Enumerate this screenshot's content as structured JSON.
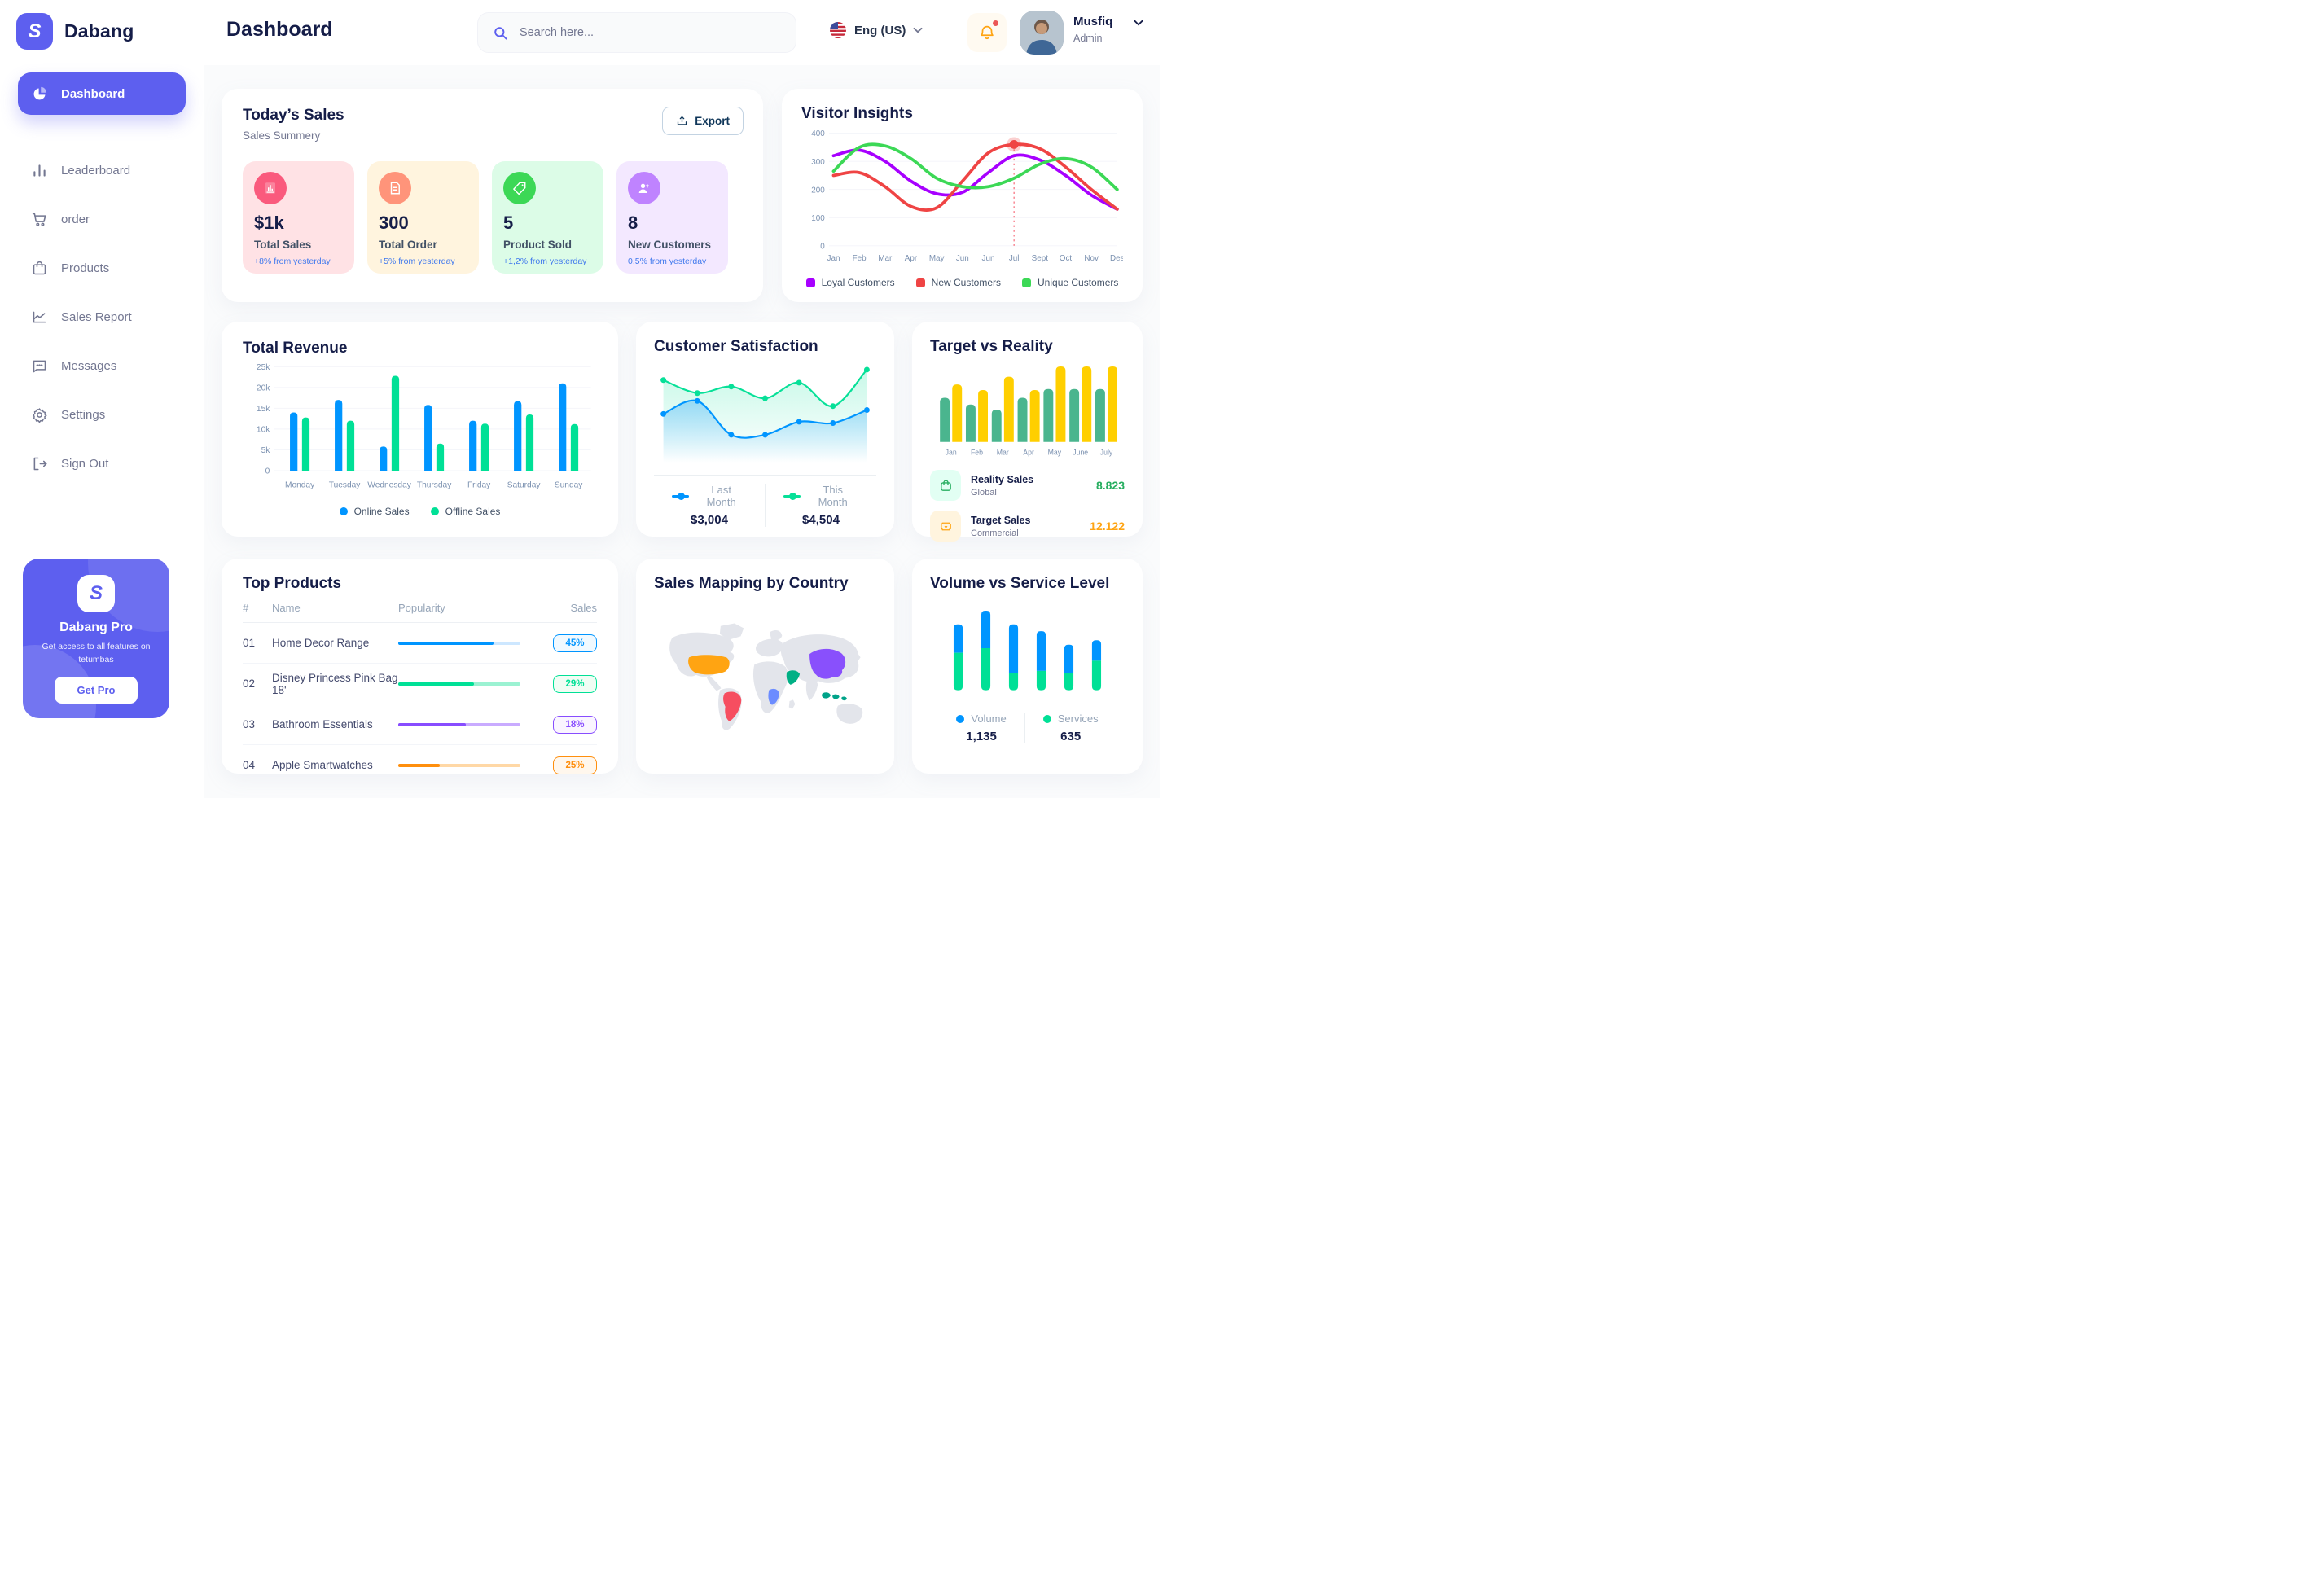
{
  "app": {
    "brand": "Dabang",
    "page_title": "Dashboard"
  },
  "sidebar": {
    "items": [
      {
        "label": "Dashboard",
        "icon": "pie-chart-icon",
        "active": true
      },
      {
        "label": "Leaderboard",
        "icon": "bar-chart-icon",
        "active": false
      },
      {
        "label": "order",
        "icon": "cart-icon",
        "active": false
      },
      {
        "label": "Products",
        "icon": "bag-icon",
        "active": false
      },
      {
        "label": "Sales Report",
        "icon": "line-chart-icon",
        "active": false
      },
      {
        "label": "Messages",
        "icon": "chat-icon",
        "active": false
      },
      {
        "label": "Settings",
        "icon": "gear-icon",
        "active": false
      },
      {
        "label": "Sign Out",
        "icon": "sign-out-icon",
        "active": false
      }
    ],
    "pro": {
      "title": "Dabang Pro",
      "subtitle": "Get access to all features on tetumbas",
      "button": "Get Pro"
    }
  },
  "header": {
    "search_placeholder": "Search here...",
    "language": "Eng (US)",
    "user": {
      "name": "Musfiq",
      "role": "Admin"
    }
  },
  "main": {
    "todays_sales": {
      "title": "Today’s Sales",
      "subtitle": "Sales Summery",
      "export_label": "Export",
      "cards": [
        {
          "value": "$1k",
          "label": "Total Sales",
          "delta": "+8% from yesterday",
          "bg": "#FFE2E5",
          "icon_bg": "#FA5A7D",
          "icon": "chart-doc-icon"
        },
        {
          "value": "300",
          "label": "Total Order",
          "delta": "+5% from yesterday",
          "bg": "#FFF4DE",
          "icon_bg": "#FF947A",
          "icon": "file-icon"
        },
        {
          "value": "5",
          "label": "Product Sold",
          "delta": "+1,2% from yesterday",
          "bg": "#DCFCE7",
          "icon_bg": "#3CD856",
          "icon": "tag-icon"
        },
        {
          "value": "8",
          "label": "New Customers",
          "delta": "0,5% from yesterday",
          "bg": "#F3E8FF",
          "icon_bg": "#BF83FF",
          "icon": "user-plus-icon"
        }
      ]
    },
    "visitor": {
      "title": "Visitor Insights"
    },
    "revenue": {
      "title": "Total Revenue"
    },
    "satisfaction": {
      "title": "Customer Satisfaction",
      "legend": [
        {
          "label": "Last Month",
          "value": "$3,004",
          "color": "#0095FF"
        },
        {
          "label": "This Month",
          "value": "$4,504",
          "color": "#07E098"
        }
      ]
    },
    "target": {
      "title": "Target vs Reality",
      "legend": [
        {
          "label": "Reality Sales",
          "sub": "Global",
          "value": "8.823",
          "value_color": "#27AE60",
          "icon_bg": "#E2FFF3",
          "icon": "bag-small-icon"
        },
        {
          "label": "Target Sales",
          "sub": "Commercial",
          "value": "12.122",
          "value_color": "#FFA412",
          "icon_bg": "#FFF4DE",
          "icon": "ticket-icon"
        }
      ]
    },
    "top_products": {
      "title": "Top Products",
      "columns": [
        "#",
        "Name",
        "Popularity",
        "Sales"
      ],
      "rows": [
        {
          "num": "01",
          "name": "Home Decor Range",
          "popularity": 78,
          "sales": "45%",
          "color": "#0095FF",
          "track": "#CDE7FF",
          "badge_bg": "#F0F9FF"
        },
        {
          "num": "02",
          "name": "Disney Princess Pink Bag 18'",
          "popularity": 62,
          "sales": "29%",
          "color": "#00E096",
          "track": "#9BF2D2",
          "badge_bg": "#F0FDF4"
        },
        {
          "num": "03",
          "name": "Bathroom Essentials",
          "popularity": 55,
          "sales": "18%",
          "color": "#884DFF",
          "track": "#C9ABFF",
          "badge_bg": "#FAF5FF"
        },
        {
          "num": "04",
          "name": "Apple Smartwatches",
          "popularity": 34,
          "sales": "25%",
          "color": "#FF8F0D",
          "track": "#FFD8A6",
          "badge_bg": "#FFF7ED"
        }
      ]
    },
    "map": {
      "title": "Sales Mapping by Country",
      "countries": [
        {
          "name": "United States",
          "color": "#FFA412"
        },
        {
          "name": "Brazil",
          "color": "#F64E60"
        },
        {
          "name": "DR Congo",
          "color": "#6C8CFF"
        },
        {
          "name": "Saudi Arabia",
          "color": "#00B085"
        },
        {
          "name": "China",
          "color": "#8950FC"
        },
        {
          "name": "Indonesia",
          "color": "#00A389"
        }
      ]
    },
    "volume": {
      "title": "Volume vs Service Level",
      "legend": [
        {
          "label": "Volume",
          "value": "1,135",
          "color": "#0095FF"
        },
        {
          "label": "Services",
          "value": "635",
          "color": "#00E096"
        }
      ]
    }
  },
  "chart_data": [
    {
      "id": "visitor_insights",
      "type": "line",
      "title": "Visitor Insights",
      "x": [
        "Jan",
        "Feb",
        "Mar",
        "Apr",
        "May",
        "Jun",
        "Jun",
        "Jul",
        "Sept",
        "Oct",
        "Nov",
        "Des"
      ],
      "ylim": [
        0,
        400
      ],
      "yticks": [
        0,
        100,
        200,
        300,
        400
      ],
      "series": [
        {
          "name": "Loyal Customers",
          "color": "#A700FF",
          "values": [
            320,
            340,
            300,
            230,
            185,
            190,
            260,
            320,
            305,
            250,
            180,
            130
          ]
        },
        {
          "name": "New Customers",
          "color": "#EF4444",
          "values": [
            250,
            260,
            210,
            140,
            135,
            230,
            330,
            360,
            345,
            280,
            200,
            130
          ]
        },
        {
          "name": "Unique Customers",
          "color": "#3CD856",
          "values": [
            265,
            350,
            355,
            310,
            240,
            210,
            210,
            240,
            290,
            310,
            280,
            200
          ]
        }
      ],
      "highlight": {
        "series": "New Customers",
        "x_index": 7,
        "value": 360
      },
      "legend_position": "bottom"
    },
    {
      "id": "total_revenue",
      "type": "bar",
      "title": "Total Revenue",
      "categories": [
        "Monday",
        "Tuesday",
        "Wednesday",
        "Thursday",
        "Friday",
        "Saturday",
        "Sunday"
      ],
      "ylim": [
        0,
        25000
      ],
      "ytick_labels": [
        "0",
        "5k",
        "10k",
        "15k",
        "20k",
        "25k"
      ],
      "series": [
        {
          "name": "Online Sales",
          "color": "#0095FF",
          "values": [
            14000,
            17000,
            5800,
            15800,
            12000,
            16700,
            21000
          ]
        },
        {
          "name": "Offline Sales",
          "color": "#00E096",
          "values": [
            12800,
            12000,
            22800,
            6500,
            11300,
            13500,
            11200
          ]
        }
      ],
      "legend_position": "bottom"
    },
    {
      "id": "customer_satisfaction",
      "type": "area",
      "title": "Customer Satisfaction",
      "series": [
        {
          "name": "Last Month",
          "color": "#0095FF",
          "total": "$3,004",
          "values": [
            3.2,
            3.7,
            2.4,
            2.4,
            2.9,
            2.85,
            3.35
          ]
        },
        {
          "name": "This Month",
          "color": "#07E098",
          "total": "$4,504",
          "values": [
            4.5,
            4.0,
            4.25,
            3.8,
            4.4,
            3.5,
            4.9
          ]
        }
      ]
    },
    {
      "id": "target_vs_reality",
      "type": "bar",
      "title": "Target vs Reality",
      "categories": [
        "Jan",
        "Feb",
        "Mar",
        "Apr",
        "May",
        "June",
        "July"
      ],
      "series": [
        {
          "name": "Reality Sales",
          "color": "#4AB58E",
          "values": [
            8.6,
            7.3,
            6.3,
            8.6,
            10.3,
            10.3,
            10.3
          ]
        },
        {
          "name": "Target Sales",
          "color": "#FFCF00",
          "values": [
            11.2,
            10.1,
            12.7,
            10.1,
            14.7,
            14.7,
            14.7
          ]
        }
      ],
      "ylim": [
        0,
        15
      ]
    },
    {
      "id": "volume_vs_service",
      "type": "stacked-bar",
      "title": "Volume vs Service Level",
      "series": [
        {
          "name": "Volume",
          "color": "#0095FF",
          "total": "1,135",
          "values": [
            250,
            330,
            430,
            350,
            250,
            180
          ]
        },
        {
          "name": "Services",
          "color": "#00E096",
          "total": "635",
          "values": [
            330,
            370,
            150,
            170,
            150,
            260
          ]
        }
      ],
      "ylim": [
        0,
        800
      ]
    }
  ]
}
